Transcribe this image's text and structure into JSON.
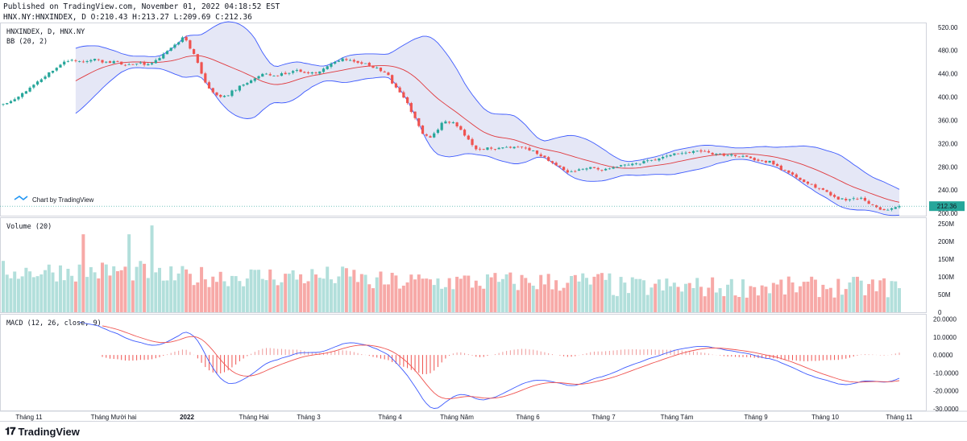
{
  "header": {
    "published": "Published on TradingView.com, November 01, 2022 04:18:52 EST",
    "ohlc": "HNX.NY:HNXINDEX, D O:210.43 H:213.27 L:209.69 C:212.36"
  },
  "panes": {
    "price_legend": "HNXINDEX, D, HNX.NY",
    "bb_legend": "BB (20, 2)",
    "volume_legend": "Volume (20)",
    "macd_legend": "MACD (12, 26, close, 9)",
    "watermark": "Chart by TradingView"
  },
  "footer": {
    "brand": "TradingView",
    "logo": "tradingview-logo"
  },
  "colors": {
    "up": "#26a69a",
    "down": "#ef5350",
    "up_volume": "#b2dfdb",
    "down_volume": "#f7a9a7",
    "bb_basis": "#e03a3e",
    "bb_band": "#3d5afe",
    "bb_fill": "#dcdff3",
    "macd_line": "#3d5afe",
    "signal_line": "#ef5350",
    "last_price_bg": "#26a69a"
  },
  "chart_data": {
    "type": "candlestick",
    "symbol": "HNXINDEX",
    "interval": "D",
    "last_price": "212.36",
    "x_ticks": [
      "Tháng 11",
      "Tháng Mười hai",
      "2022",
      "Tháng Hai",
      "Tháng 3",
      "Tháng 4",
      "Tháng Năm",
      "Tháng 6",
      "Tháng 7",
      "Tháng Tám",
      "Tháng 9",
      "Tháng 10",
      "Tháng 11"
    ],
    "price_axis": {
      "ylim": [
        196,
        528
      ],
      "ticks": [
        "520.00",
        "480.00",
        "440.00",
        "400.00",
        "360.00",
        "320.00",
        "280.00",
        "240.00",
        "200.00"
      ]
    },
    "volume_axis": {
      "unit": "M",
      "ylim": [
        0,
        268
      ],
      "ticks": [
        "250M",
        "200M",
        "150M",
        "100M",
        "50M",
        "0"
      ]
    },
    "macd_axis": {
      "ylim": [
        -31,
        23
      ],
      "ticks": [
        "20.0000",
        "10.0000",
        "0.0000",
        "-10.0000",
        "-20.0000",
        "-30.0000"
      ]
    },
    "price_anchors": [
      [
        0,
        388
      ],
      [
        10,
        396
      ],
      [
        20,
        410
      ],
      [
        30,
        425
      ],
      [
        40,
        440
      ],
      [
        50,
        455
      ],
      [
        60,
        465
      ],
      [
        70,
        460
      ],
      [
        80,
        465
      ],
      [
        90,
        460
      ],
      [
        100,
        460
      ],
      [
        110,
        455
      ],
      [
        120,
        458
      ],
      [
        130,
        455
      ],
      [
        140,
        470
      ],
      [
        150,
        485
      ],
      [
        160,
        505
      ],
      [
        170,
        470
      ],
      [
        180,
        420
      ],
      [
        190,
        400
      ],
      [
        200,
        405
      ],
      [
        210,
        420
      ],
      [
        220,
        430
      ],
      [
        230,
        440
      ],
      [
        240,
        436
      ],
      [
        250,
        440
      ],
      [
        260,
        445
      ],
      [
        270,
        440
      ],
      [
        280,
        442
      ],
      [
        290,
        455
      ],
      [
        300,
        465
      ],
      [
        310,
        462
      ],
      [
        320,
        458
      ],
      [
        330,
        450
      ],
      [
        340,
        440
      ],
      [
        350,
        410
      ],
      [
        360,
        385
      ],
      [
        370,
        340
      ],
      [
        380,
        330
      ],
      [
        390,
        360
      ],
      [
        400,
        355
      ],
      [
        410,
        330
      ],
      [
        420,
        310
      ],
      [
        430,
        312
      ],
      [
        440,
        312
      ],
      [
        450,
        313
      ],
      [
        460,
        312
      ],
      [
        470,
        308
      ],
      [
        480,
        295
      ],
      [
        490,
        283
      ],
      [
        500,
        270
      ],
      [
        510,
        275
      ],
      [
        520,
        280
      ],
      [
        530,
        275
      ],
      [
        540,
        278
      ],
      [
        550,
        282
      ],
      [
        560,
        285
      ],
      [
        570,
        290
      ],
      [
        580,
        292
      ],
      [
        590,
        300
      ],
      [
        600,
        304
      ],
      [
        610,
        305
      ],
      [
        620,
        306
      ],
      [
        630,
        302
      ],
      [
        640,
        300
      ],
      [
        650,
        300
      ],
      [
        660,
        295
      ],
      [
        670,
        290
      ],
      [
        680,
        288
      ],
      [
        690,
        275
      ],
      [
        700,
        265
      ],
      [
        710,
        255
      ],
      [
        720,
        245
      ],
      [
        730,
        235
      ],
      [
        740,
        225
      ],
      [
        750,
        224
      ],
      [
        760,
        225
      ],
      [
        770,
        215
      ],
      [
        780,
        205
      ],
      [
        790,
        212
      ],
      [
        794,
        212.36
      ]
    ]
  }
}
